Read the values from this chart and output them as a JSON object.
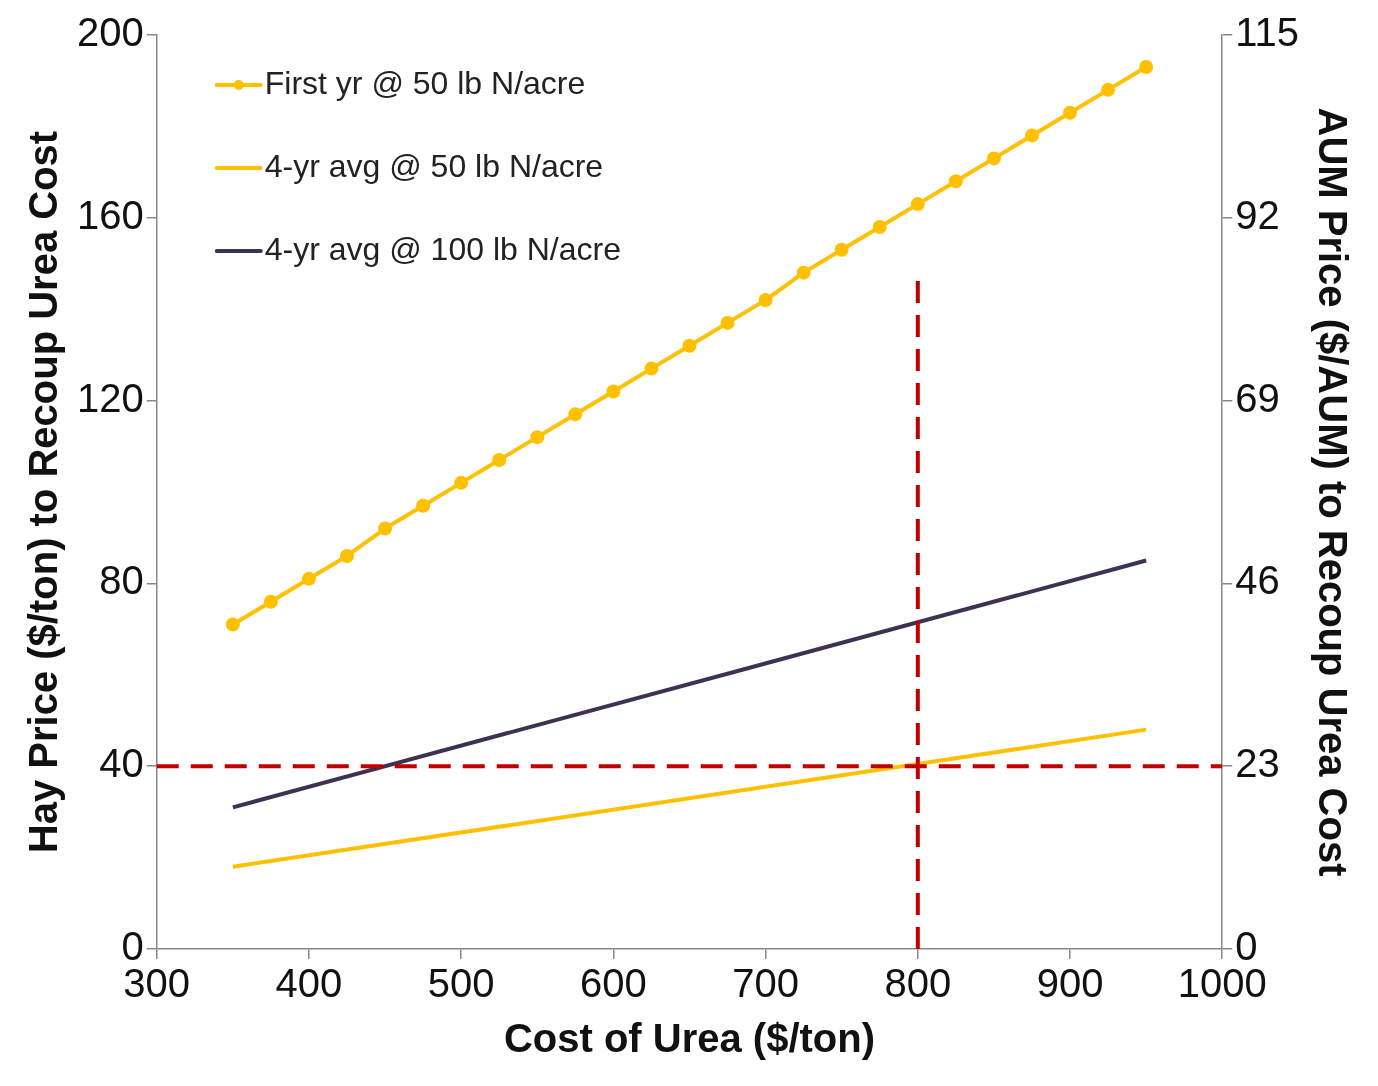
{
  "chart_data": {
    "type": "line",
    "xlabel": "Cost of Urea ($/ton)",
    "ylabel": "Hay Price ($/ton) to Recoup Urea Cost",
    "y2label": "AUM Price ($/AUM) to Recoup Urea Cost",
    "series": [
      {
        "name": "First yr @ 50 lb N/acre",
        "color": "#ffc000",
        "marker": "circle",
        "x": [
          350,
          375,
          400,
          425,
          450,
          475,
          500,
          525,
          550,
          575,
          600,
          625,
          650,
          675,
          700,
          725,
          750,
          775,
          800,
          825,
          850,
          875,
          900,
          925,
          950
        ],
        "values": [
          71,
          76,
          81,
          86,
          92,
          97,
          102,
          107,
          112,
          117,
          122,
          127,
          132,
          137,
          142,
          148,
          153,
          158,
          163,
          168,
          173,
          178,
          183,
          188,
          193
        ]
      },
      {
        "name": "4-yr avg @ 50 lb N/acre",
        "color": "#ffc000",
        "marker": "none",
        "x": [
          350,
          950
        ],
        "values": [
          18,
          48
        ]
      },
      {
        "name": "4-yr avg @ 100 lb N/acre",
        "color": "#3f3151",
        "marker": "none",
        "x": [
          350,
          950
        ],
        "values": [
          31,
          85
        ]
      }
    ],
    "xlim": [
      300,
      1000
    ],
    "xticks": [
      300,
      400,
      500,
      600,
      700,
      800,
      900,
      1000
    ],
    "ylim": [
      0,
      200
    ],
    "yticks": [
      0,
      40,
      80,
      120,
      160,
      200
    ],
    "y2lim": [
      0,
      115
    ],
    "y2ticks": [
      0,
      23,
      46,
      69,
      92,
      115
    ],
    "ref_lines": [
      {
        "axis": "y",
        "value": 40,
        "color": "#c00000",
        "line_style": "dashed"
      },
      {
        "axis": "x",
        "value": 800,
        "color": "#c00000",
        "line_style": "dashed"
      }
    ],
    "legend": "top left",
    "grid": false
  }
}
